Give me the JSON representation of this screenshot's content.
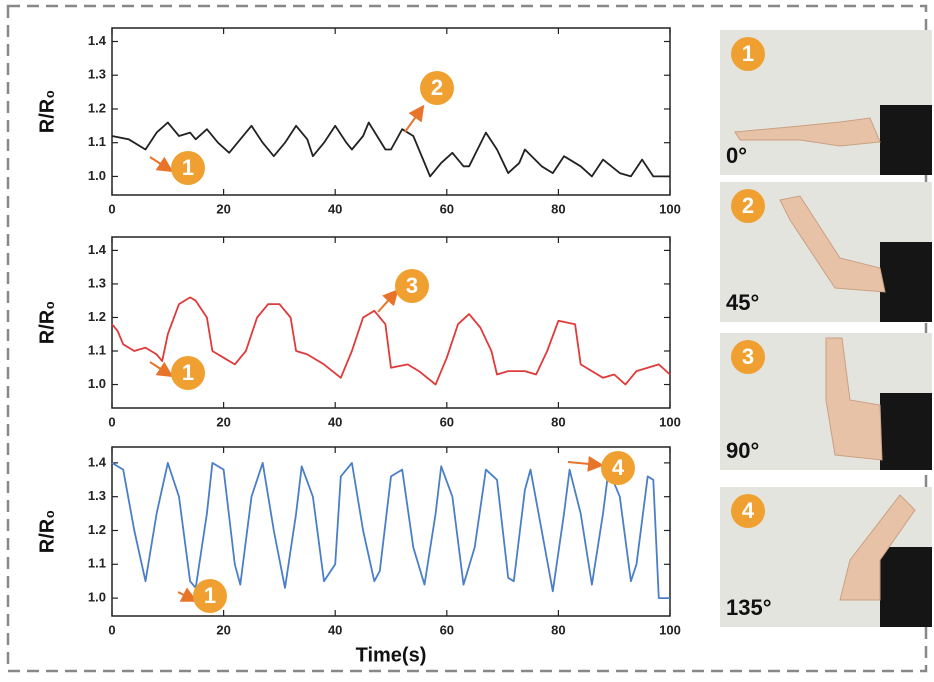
{
  "chart_data": [
    {
      "type": "line",
      "ylabel": "R/R₀",
      "color": "#222222",
      "xlim": [
        0,
        100
      ],
      "xticks": [
        0,
        20,
        40,
        60,
        80,
        100
      ],
      "ylim": [
        0.945,
        1.44
      ],
      "yticks": [
        {
          "value": 1,
          "label": "1.0"
        },
        1.1,
        1.2,
        1.3,
        1.4
      ],
      "x": [
        0,
        3,
        6,
        8,
        10,
        12,
        14,
        15,
        17,
        19,
        21,
        23,
        25,
        27,
        29,
        31,
        33,
        35,
        36,
        38,
        40,
        42,
        43,
        45,
        46,
        49,
        50,
        52,
        54,
        56,
        57,
        59,
        61,
        63,
        64,
        67,
        69,
        71,
        73,
        74,
        77,
        79,
        81,
        84,
        86,
        88,
        91,
        93,
        95,
        97,
        100
      ],
      "values": [
        1.12,
        1.11,
        1.08,
        1.13,
        1.16,
        1.12,
        1.13,
        1.11,
        1.14,
        1.1,
        1.07,
        1.11,
        1.15,
        1.1,
        1.06,
        1.1,
        1.15,
        1.11,
        1.06,
        1.1,
        1.15,
        1.1,
        1.08,
        1.12,
        1.16,
        1.08,
        1.08,
        1.14,
        1.12,
        1.04,
        1.0,
        1.04,
        1.07,
        1.03,
        1.03,
        1.13,
        1.08,
        1.01,
        1.04,
        1.08,
        1.03,
        1.01,
        1.06,
        1.03,
        1.0,
        1.05,
        1.01,
        1.0,
        1.05,
        1.0,
        1.0
      ],
      "annotations": [
        "1",
        "2"
      ]
    },
    {
      "type": "line",
      "ylabel": "R/R₀",
      "color": "#e03a3a",
      "xlim": [
        0,
        100
      ],
      "xticks": [
        0,
        20,
        40,
        60,
        80,
        100
      ],
      "ylim": [
        0.93,
        1.44
      ],
      "yticks": [
        {
          "value": 1,
          "label": "1.0"
        },
        1.1,
        1.2,
        1.3,
        1.4
      ],
      "x": [
        0,
        1,
        2,
        4,
        6,
        8,
        9,
        10,
        12,
        14,
        15,
        17,
        18,
        20,
        22,
        24,
        26,
        28,
        30,
        32,
        33,
        35,
        38,
        41,
        43,
        45,
        47,
        49,
        50,
        53,
        55,
        58,
        60,
        62,
        64,
        66,
        68,
        69,
        71,
        74,
        76,
        78,
        80,
        83,
        84,
        86,
        88,
        90,
        92,
        94,
        96,
        98,
        100
      ],
      "values": [
        1.18,
        1.16,
        1.12,
        1.1,
        1.11,
        1.09,
        1.07,
        1.15,
        1.24,
        1.26,
        1.25,
        1.2,
        1.1,
        1.08,
        1.06,
        1.1,
        1.2,
        1.24,
        1.24,
        1.2,
        1.1,
        1.09,
        1.06,
        1.02,
        1.1,
        1.2,
        1.22,
        1.18,
        1.05,
        1.06,
        1.04,
        1.0,
        1.08,
        1.18,
        1.21,
        1.17,
        1.1,
        1.03,
        1.04,
        1.04,
        1.03,
        1.1,
        1.19,
        1.18,
        1.06,
        1.04,
        1.02,
        1.03,
        1.0,
        1.04,
        1.05,
        1.06,
        1.03
      ],
      "annotations": [
        "1",
        "3"
      ]
    },
    {
      "type": "line",
      "ylabel": "R/R₀",
      "xlabel": "Time(s)",
      "color": "#4a7fc8",
      "xlim": [
        0,
        100
      ],
      "xticks": [
        0,
        20,
        40,
        60,
        80,
        100
      ],
      "ylim": [
        0.947,
        1.447
      ],
      "yticks": [
        {
          "value": 1,
          "label": "1.0"
        },
        1.1,
        1.2,
        1.3,
        1.4
      ],
      "x": [
        0,
        2,
        4,
        6,
        8,
        10,
        12,
        14,
        15,
        17,
        18,
        20,
        22,
        23,
        25,
        27,
        29,
        31,
        33,
        34,
        36,
        38,
        40,
        41,
        43,
        45,
        47,
        48,
        50,
        52,
        54,
        56,
        58,
        59,
        61,
        63,
        65,
        67,
        69,
        71,
        72,
        74,
        75,
        77,
        79,
        81,
        82,
        84,
        86,
        88,
        89,
        91,
        93,
        94,
        96,
        97,
        98,
        100
      ],
      "values": [
        1.4,
        1.38,
        1.2,
        1.05,
        1.25,
        1.4,
        1.3,
        1.05,
        1.03,
        1.25,
        1.4,
        1.38,
        1.1,
        1.04,
        1.3,
        1.4,
        1.2,
        1.03,
        1.25,
        1.39,
        1.3,
        1.05,
        1.1,
        1.36,
        1.4,
        1.2,
        1.05,
        1.08,
        1.36,
        1.38,
        1.15,
        1.04,
        1.25,
        1.39,
        1.3,
        1.04,
        1.15,
        1.38,
        1.35,
        1.06,
        1.05,
        1.32,
        1.38,
        1.2,
        1.02,
        1.25,
        1.38,
        1.25,
        1.04,
        1.25,
        1.38,
        1.3,
        1.05,
        1.1,
        1.36,
        1.35,
        1.0,
        1.0
      ],
      "annotations": [
        "1",
        "4"
      ]
    }
  ],
  "photos": [
    {
      "number": "1",
      "angle": "0°"
    },
    {
      "number": "2",
      "angle": "45°"
    },
    {
      "number": "3",
      "angle": "90°"
    },
    {
      "number": "4",
      "angle": "135°"
    }
  ]
}
